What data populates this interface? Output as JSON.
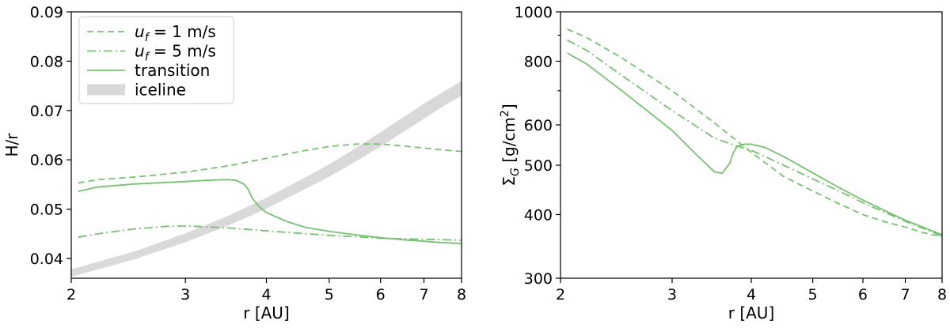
{
  "colors": {
    "series": "#77c270",
    "band": "#d9d9d9",
    "axis": "#000000"
  },
  "chart_data": [
    {
      "type": "line",
      "xlabel": "r [AU]",
      "ylabel": "H/r",
      "xscale": "log",
      "xlim": [
        2,
        8
      ],
      "ylim": [
        0.036,
        0.09
      ],
      "xticks": [
        2,
        3,
        4,
        5,
        6,
        7,
        8
      ],
      "xtick_labels": [
        "2",
        "3",
        "4",
        "5",
        "6",
        "7",
        "8"
      ],
      "yticks": [
        0.04,
        0.05,
        0.06,
        0.07,
        0.08,
        0.09
      ],
      "ytick_labels": [
        "0.04",
        "0.05",
        "0.06",
        "0.07",
        "0.08",
        "0.09"
      ],
      "legend": {
        "placement": "upper-left",
        "entries": [
          {
            "label": "u",
            "sub": "f",
            "rest": " = 1 m/s",
            "style": "dashed"
          },
          {
            "label": "u",
            "sub": "f",
            "rest": " = 5 m/s",
            "style": "dashdot"
          },
          {
            "label": "transition",
            "sub": "",
            "rest": "",
            "style": "solid"
          },
          {
            "label": "iceline",
            "sub": "",
            "rest": "",
            "style": "band"
          }
        ]
      },
      "series": [
        {
          "style": "dashed",
          "x": [
            2.05,
            2.2,
            2.5,
            3.0,
            3.5,
            4.0,
            4.5,
            5.0,
            5.5,
            6.0,
            6.5,
            7.0,
            7.5,
            8.0
          ],
          "y": [
            0.0553,
            0.056,
            0.0565,
            0.0575,
            0.0588,
            0.0603,
            0.0617,
            0.0627,
            0.0632,
            0.0632,
            0.0628,
            0.0624,
            0.062,
            0.0617
          ]
        },
        {
          "style": "dashdot",
          "x": [
            2.05,
            2.2,
            2.5,
            2.8,
            3.0,
            3.5,
            4.0,
            4.5,
            5.0,
            5.5,
            6.0,
            6.5,
            7.0,
            7.5,
            8.0
          ],
          "y": [
            0.0443,
            0.045,
            0.046,
            0.0465,
            0.0466,
            0.0462,
            0.0456,
            0.0451,
            0.0447,
            0.0444,
            0.0441,
            0.044,
            0.0439,
            0.0438,
            0.0437
          ]
        },
        {
          "style": "solid",
          "x": [
            2.05,
            2.2,
            2.5,
            3.0,
            3.3,
            3.5,
            3.6,
            3.7,
            3.75,
            3.8,
            3.9,
            4.0,
            4.3,
            4.6,
            5.0,
            5.5,
            6.0,
            6.5,
            7.0,
            7.5,
            8.0
          ],
          "y": [
            0.0536,
            0.0545,
            0.0551,
            0.0556,
            0.0559,
            0.056,
            0.0558,
            0.055,
            0.054,
            0.0523,
            0.0505,
            0.0493,
            0.0475,
            0.0463,
            0.0455,
            0.0448,
            0.0442,
            0.0438,
            0.0435,
            0.0432,
            0.043
          ]
        }
      ],
      "bands": [
        {
          "style": "band",
          "x": [
            2.0,
            2.5,
            3.0,
            3.5,
            4.0,
            4.5,
            5.0,
            5.5,
            6.0,
            6.5,
            7.0,
            7.5,
            8.0
          ],
          "y_low": [
            0.0363,
            0.0398,
            0.0433,
            0.0467,
            0.0501,
            0.0535,
            0.0566,
            0.0597,
            0.0627,
            0.0656,
            0.0683,
            0.0709,
            0.073
          ],
          "y_high": [
            0.0378,
            0.0414,
            0.0451,
            0.0487,
            0.0523,
            0.0558,
            0.0591,
            0.0624,
            0.0656,
            0.0686,
            0.0714,
            0.0738,
            0.076
          ]
        }
      ]
    },
    {
      "type": "line",
      "xlabel": "r [AU]",
      "ylabel": "Σ",
      "ylabel_sub": "G",
      "ylabel_rest": " [g/cm",
      "ylabel_sup": "2",
      "ylabel_end": "]",
      "xscale": "log",
      "yscale": "log",
      "xlim": [
        2,
        8
      ],
      "ylim": [
        300,
        1000
      ],
      "xticks": [
        2,
        3,
        4,
        5,
        6,
        7,
        8
      ],
      "xtick_labels": [
        "2",
        "3",
        "4",
        "5",
        "6",
        "7",
        "8"
      ],
      "yticks": [
        300,
        400,
        500,
        600,
        800,
        1000
      ],
      "ytick_labels": [
        "300",
        "400",
        "500",
        "600",
        "800",
        "1000"
      ],
      "yminor_ticks": [
        700,
        900
      ],
      "series": [
        {
          "style": "dashed",
          "x": [
            2.05,
            2.2,
            2.5,
            3.0,
            3.5,
            4.0,
            4.5,
            5.0,
            5.5,
            6.0,
            6.5,
            7.0,
            7.5,
            8.0
          ],
          "y": [
            925,
            890,
            812,
            700,
            605,
            530,
            475,
            445,
            420,
            400,
            387,
            378,
            368,
            362
          ]
        },
        {
          "style": "dashdot",
          "x": [
            2.05,
            2.2,
            2.5,
            3.0,
            3.5,
            3.8,
            4.0,
            4.5,
            5.0,
            5.5,
            6.0,
            6.5,
            7.0,
            7.5,
            8.0
          ],
          "y": [
            880,
            840,
            750,
            640,
            565,
            545,
            535,
            500,
            470,
            445,
            422,
            404,
            388,
            375,
            363
          ]
        },
        {
          "style": "solid",
          "x": [
            2.05,
            2.2,
            2.5,
            3.0,
            3.3,
            3.5,
            3.6,
            3.7,
            3.75,
            3.8,
            3.9,
            4.0,
            4.2,
            4.5,
            5.0,
            5.5,
            6.0,
            6.5,
            7.0,
            7.5,
            8.0
          ],
          "y": [
            830,
            790,
            700,
            585,
            520,
            485,
            482,
            505,
            530,
            545,
            550,
            550,
            542,
            520,
            483,
            452,
            427,
            407,
            390,
            377,
            365
          ]
        }
      ]
    }
  ]
}
